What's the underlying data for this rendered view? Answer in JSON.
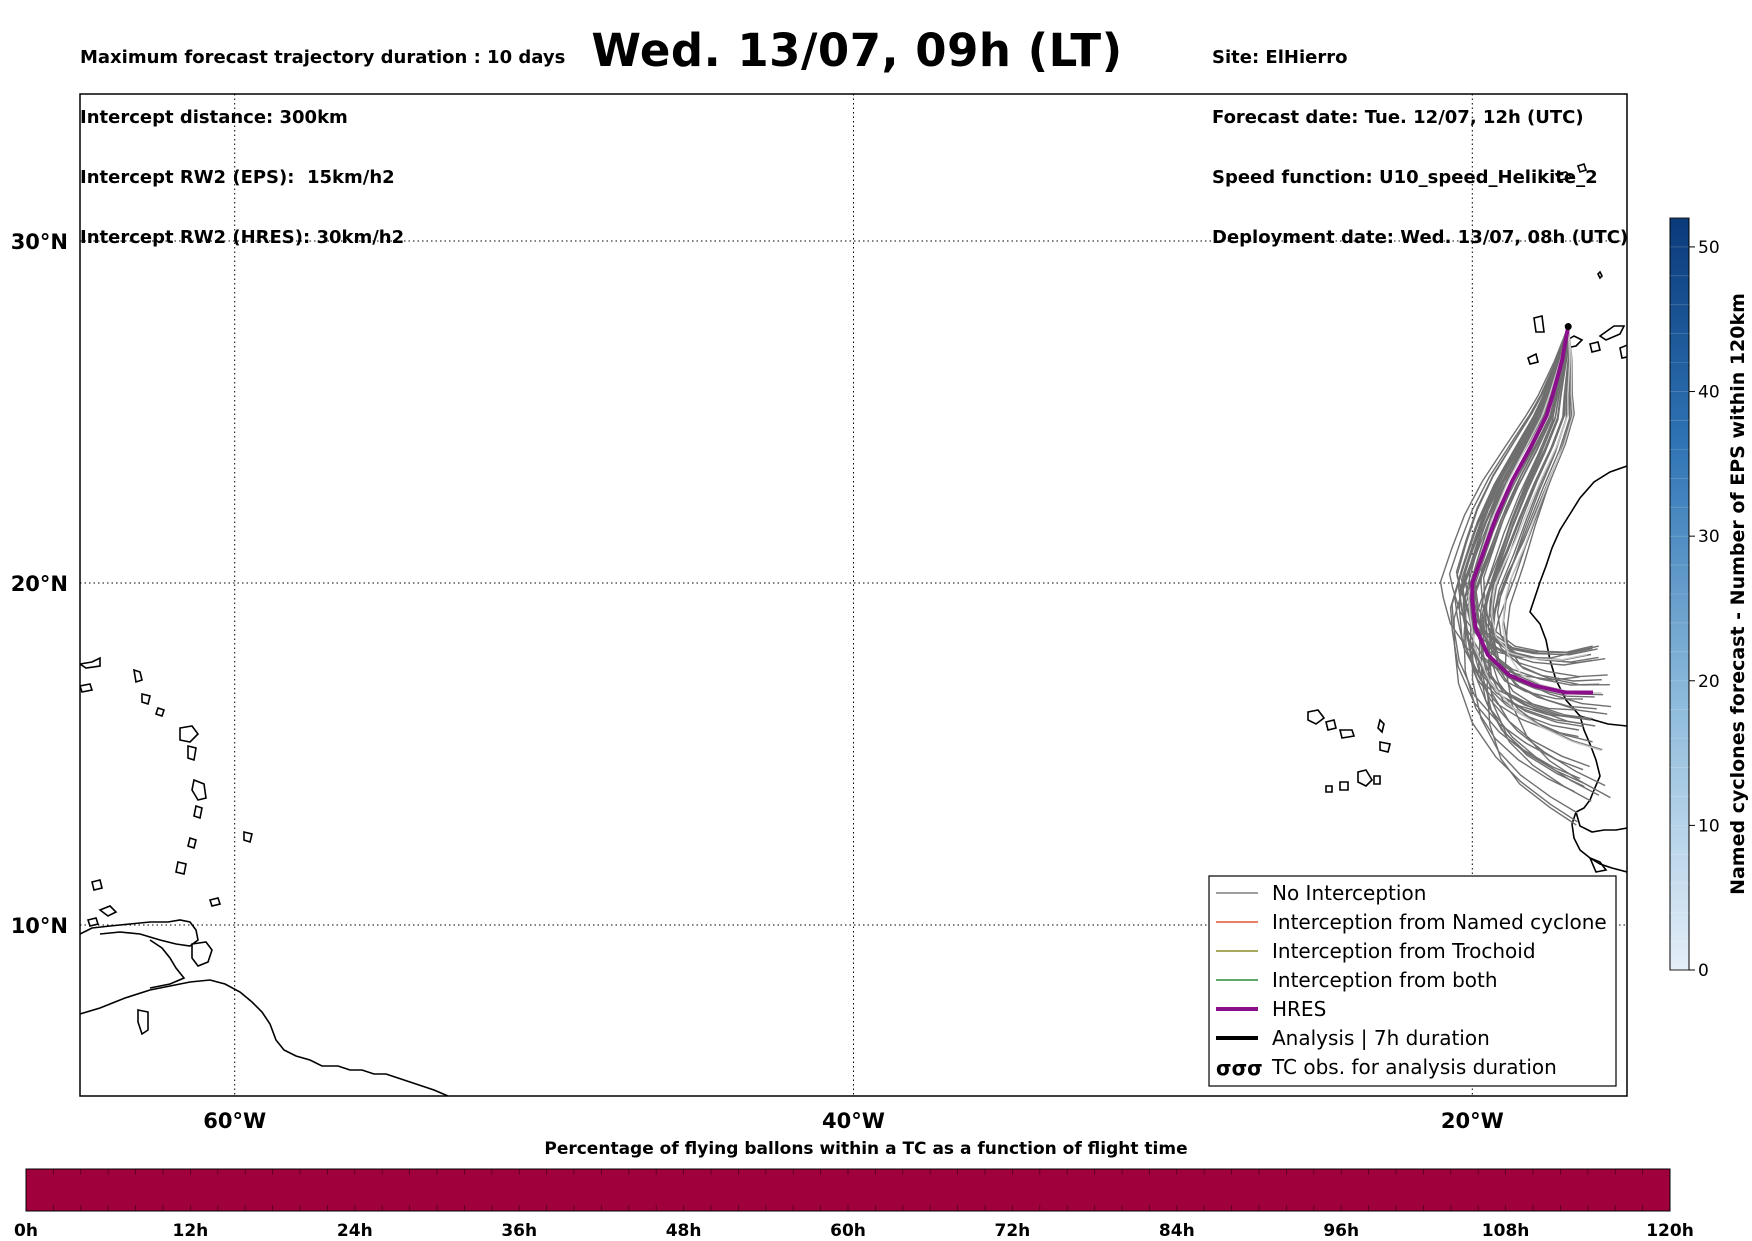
{
  "info_left": [
    "Maximum forecast trajectory duration : 10 days",
    "Intercept distance: 300km",
    "Intercept RW2 (EPS):  15km/h2",
    "Intercept RW2 (HRES): 30km/h2"
  ],
  "info_right": [
    "Site: ElHierro",
    "Forecast date: Tue. 12/07, 12h (UTC)",
    "Speed function: U10_speed_Helikite_2",
    "Deployment date: Wed. 13/07, 08h (UTC)"
  ],
  "title": "Wed. 13/07, 09h (LT)",
  "map": {
    "lon_range": [
      -65,
      -15
    ],
    "lat_range": [
      5,
      34.3
    ],
    "lon_ticks": [
      {
        "value": -60,
        "label": "60°W"
      },
      {
        "value": -40,
        "label": "40°W"
      },
      {
        "value": -20,
        "label": "20°W"
      }
    ],
    "lat_ticks": [
      {
        "value": 30,
        "label": "30°N"
      },
      {
        "value": 20,
        "label": "20°N"
      },
      {
        "value": 10,
        "label": "10°N"
      }
    ],
    "grid": "dotted"
  },
  "hres_track": [
    [
      -16.9,
      27.5
    ],
    [
      -17.1,
      26.5
    ],
    [
      -17.4,
      25.5
    ],
    [
      -17.6,
      24.9
    ],
    [
      -18.1,
      24.0
    ],
    [
      -18.7,
      23.0
    ],
    [
      -19.2,
      22.0
    ],
    [
      -19.6,
      21.0
    ],
    [
      -20.0,
      20.0
    ],
    [
      -20.0,
      19.5
    ],
    [
      -19.9,
      18.7
    ],
    [
      -19.5,
      17.9
    ],
    [
      -18.8,
      17.3
    ],
    [
      -18.0,
      17.0
    ],
    [
      -17.0,
      16.8
    ],
    [
      -16.1,
      16.8
    ]
  ],
  "legend": [
    {
      "label": "No Interception",
      "color": "#7f7f7f",
      "style": "thin"
    },
    {
      "label": "Interception from Named cyclone",
      "color": "#e4572e",
      "style": "thin"
    },
    {
      "label": "Interception from Trochoid",
      "color": "#8b8b2a",
      "style": "thin"
    },
    {
      "label": "Interception from both",
      "color": "#2e8b3a",
      "style": "thin"
    },
    {
      "label": "HRES",
      "color": "#8b0f8b",
      "style": "thick"
    },
    {
      "label": "Analysis | 7h duration",
      "color": "#000000",
      "style": "thick"
    },
    {
      "label": "TC obs. for analysis duration",
      "color": "#000000",
      "style": "symbol"
    }
  ],
  "colorbar_vertical": {
    "title": "Named cyclones forecast - Number of EPS within 120km",
    "range": [
      0,
      52
    ],
    "ticks": [
      "0",
      "10",
      "20",
      "30",
      "40",
      "50"
    ],
    "color_low": "#e4eef8",
    "color_high": "#0a3a7a"
  },
  "colorbar_horizontal": {
    "title": "Percentage of flying ballons within a TC as a function of flight time",
    "ticks": [
      "0h",
      "12h",
      "24h",
      "36h",
      "48h",
      "60h",
      "72h",
      "84h",
      "96h",
      "108h",
      "120h"
    ],
    "color": "#a0003c"
  }
}
